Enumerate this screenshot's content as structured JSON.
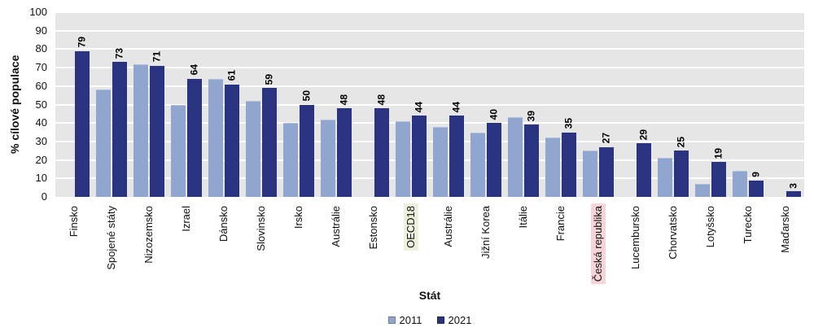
{
  "chart_data": {
    "type": "bar",
    "title": "",
    "ylabel": "% cílové populace",
    "xlabel": "Stát",
    "ylim": [
      0,
      100
    ],
    "yticks": [
      0,
      10,
      20,
      30,
      40,
      50,
      60,
      70,
      80,
      90,
      100
    ],
    "grid": "horizontal-white-on-gray",
    "legend_position": "bottom-center",
    "plot_background": "#e6e6e6",
    "categories": [
      "Finsko",
      "Spojené státy",
      "Nizozemsko",
      "Izrael",
      "Dánsko",
      "Slovinsko",
      "Irsko",
      "Austrálie",
      "Estonsko",
      "OECD18",
      "Austrálie",
      "Jižní Korea",
      "Itálie",
      "Francie",
      "Česká republika",
      "Lucembursko",
      "Chorvatsko",
      "Lotyšsko",
      "Turecko",
      "Maďarsko"
    ],
    "series": [
      {
        "name": "2011",
        "color": "#91a6cf",
        "values": [
          null,
          58,
          72,
          50,
          64,
          52,
          40,
          42,
          null,
          41,
          38,
          35,
          43,
          32,
          25,
          null,
          21,
          7,
          14,
          null
        ]
      },
      {
        "name": "2021",
        "color": "#293380",
        "values": [
          79,
          73,
          71,
          64,
          61,
          59,
          50,
          48,
          48,
          44,
          44,
          40,
          39,
          35,
          27,
          29,
          25,
          19,
          9,
          3
        ]
      }
    ],
    "data_labels_series": "2021",
    "data_labels": [
      79,
      73,
      71,
      64,
      61,
      59,
      50,
      48,
      48,
      44,
      44,
      40,
      39,
      35,
      27,
      29,
      25,
      19,
      9,
      3
    ],
    "legend": [
      {
        "label": "2011",
        "color": "#91a6cf"
      },
      {
        "label": "2021",
        "color": "#293380"
      }
    ],
    "highlights": [
      {
        "category": "OECD18",
        "color": "#edf0da"
      },
      {
        "category": "Česká republika",
        "color": "#f6d4d8"
      }
    ]
  }
}
